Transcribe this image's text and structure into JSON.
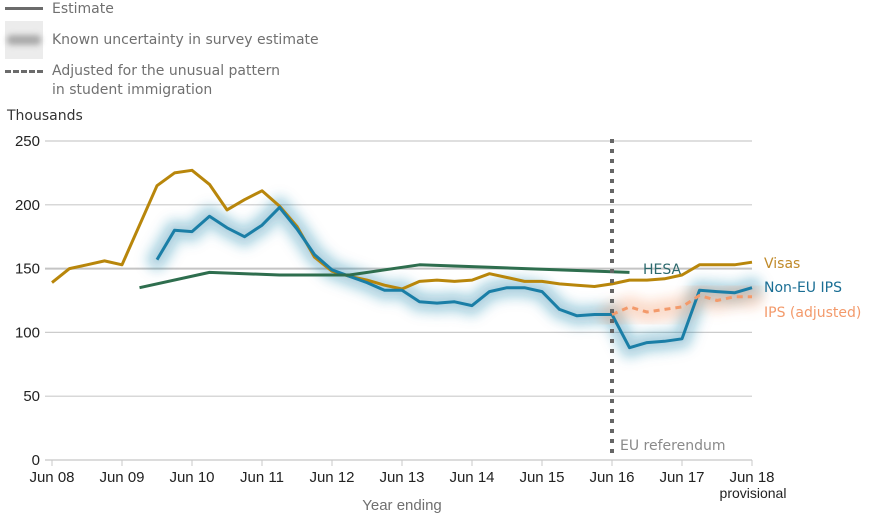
{
  "legend": {
    "estimate": "Estimate",
    "uncertainty": "Known uncertainty in survey estimate",
    "adjusted_line1": "Adjusted for the unusual pattern",
    "adjusted_line2": "in student immigration"
  },
  "chart_data": {
    "type": "line",
    "title": "",
    "ylabel": "Thousands",
    "xlabel": "Year ending",
    "ylim": [
      0,
      250
    ],
    "yticks": [
      0,
      50,
      100,
      150,
      200,
      250
    ],
    "xlim": [
      "Jun 08",
      "Jun 18"
    ],
    "xticks": [
      "Jun 08",
      "Jun 09",
      "Jun 10",
      "Jun 11",
      "Jun 12",
      "Jun 13",
      "Jun 14",
      "Jun 15",
      "Jun 16",
      "Jun 17",
      "Jun 18"
    ],
    "xtick_sublabel": {
      "Jun 18": "provisional"
    },
    "grid": true,
    "legend_placement": "top-left",
    "annotations": [
      {
        "type": "vertical-dotted-line",
        "x": 8.0,
        "label": "EU referendum"
      }
    ],
    "colors": {
      "visas": "#b8860b",
      "ips": "#1a7ea6",
      "hesa": "#2e6e4e",
      "ips_adjusted": "#f39a6b",
      "grid": "#cccccc",
      "referendum": "#666666"
    },
    "series": [
      {
        "name": "Visas",
        "label": "Visas",
        "style": "solid",
        "x": [
          0,
          0.25,
          0.5,
          0.75,
          1.0,
          1.5,
          1.75,
          2.0,
          2.25,
          2.5,
          2.75,
          3.0,
          3.25,
          3.5,
          3.75,
          4.0,
          4.25,
          4.5,
          4.75,
          5.0,
          5.25,
          5.5,
          5.75,
          6.0,
          6.25,
          6.5,
          6.75,
          7.0,
          7.25,
          7.5,
          7.75,
          8.0,
          8.25,
          8.5,
          8.75,
          9.0,
          9.25,
          9.5,
          9.75,
          10.0
        ],
        "values": [
          139,
          150,
          153,
          156,
          153,
          215,
          225,
          227,
          216,
          196,
          204,
          211,
          199,
          183,
          159,
          148,
          144,
          141,
          137,
          134,
          140,
          141,
          140,
          141,
          146,
          143,
          140,
          140,
          138,
          137,
          136,
          138,
          141,
          141,
          142,
          145,
          153,
          153,
          153,
          155
        ]
      },
      {
        "name": "Non-EU IPS",
        "label": "Non-EU IPS",
        "style": "solid",
        "uncertainty": true,
        "x": [
          1.5,
          1.75,
          2.0,
          2.25,
          2.5,
          2.75,
          3.0,
          3.25,
          3.5,
          3.75,
          4.0,
          4.25,
          4.5,
          4.75,
          5.0,
          5.25,
          5.5,
          5.75,
          6.0,
          6.25,
          6.5,
          6.75,
          7.0,
          7.25,
          7.5,
          7.75,
          8.0,
          8.25,
          8.5,
          8.75,
          9.0,
          9.25,
          9.5,
          9.75,
          10.0
        ],
        "values": [
          157,
          180,
          179,
          191,
          182,
          175,
          184,
          198,
          181,
          161,
          149,
          144,
          139,
          133,
          133,
          124,
          123,
          124,
          121,
          132,
          135,
          135,
          132,
          118,
          113,
          114,
          114,
          88,
          92,
          93,
          95,
          133,
          132,
          131,
          135
        ]
      },
      {
        "name": "HESA",
        "label": "HESA",
        "style": "solid",
        "x": [
          1.25,
          2.25,
          3.25,
          4.25,
          5.25,
          6.25,
          7.25,
          8.25
        ],
        "values": [
          135,
          147,
          145,
          145,
          153,
          151,
          149,
          147
        ]
      },
      {
        "name": "IPS (adjusted)",
        "label": "IPS (adjusted)",
        "style": "dashed",
        "uncertainty": true,
        "x": [
          8.0,
          8.25,
          8.5,
          8.75,
          9.0,
          9.25,
          9.5,
          9.75,
          10.0
        ],
        "values": [
          114,
          120,
          116,
          118,
          120,
          129,
          125,
          128,
          128
        ]
      }
    ]
  }
}
